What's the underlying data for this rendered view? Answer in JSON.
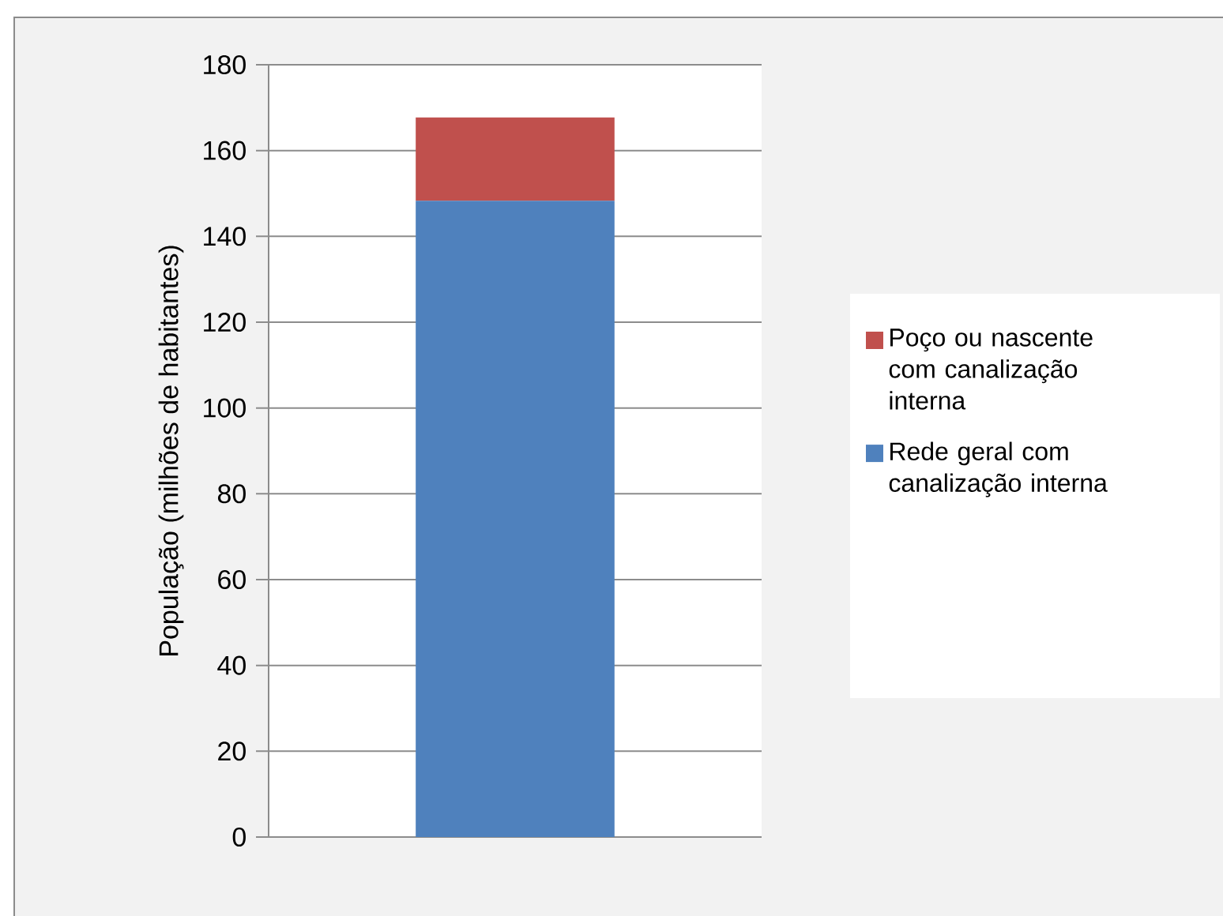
{
  "chart_data": {
    "type": "bar",
    "stacked": true,
    "ylabel": "População (milhões de habitantes)",
    "categories": [
      null
    ],
    "series": [
      {
        "name": "Rede geral com canalização interna",
        "color": "#4f81bd",
        "values": [
          148.3
        ]
      },
      {
        "name": "Poço ou nascente com canalização interna",
        "color": "#c0504d",
        "values": [
          19.4
        ]
      }
    ],
    "ylim": [
      0,
      180
    ],
    "yticks": [
      0,
      20,
      40,
      60,
      80,
      100,
      120,
      140,
      160,
      180
    ],
    "grid": "y",
    "legend": "right"
  }
}
